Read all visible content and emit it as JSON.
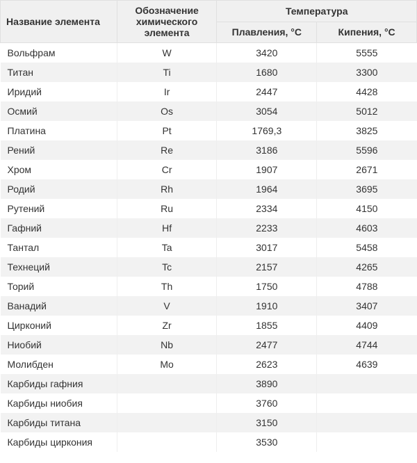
{
  "table": {
    "type": "table",
    "background_color": "#ffffff",
    "row_alt_color": "#f2f2f2",
    "header_bg": "#f0f0f0",
    "border_color": "#e0e0e0",
    "font_family": "Arial",
    "font_size_pt": 11,
    "header_font_weight": "bold",
    "columns": {
      "name": {
        "label": "Название элемента",
        "align": "left",
        "width_pct": 28
      },
      "symbol": {
        "label": "Обозначение химического элемента",
        "align": "center",
        "width_pct": 24
      },
      "temp_group": {
        "label": "Температура"
      },
      "melt": {
        "label": "Плавления, °С",
        "align": "center",
        "width_pct": 24
      },
      "boil": {
        "label": "Кипения, °С",
        "align": "center",
        "width_pct": 24
      }
    },
    "rows": [
      {
        "name": "Вольфрам",
        "symbol": "W",
        "melt": "3420",
        "boil": "5555"
      },
      {
        "name": "Титан",
        "symbol": "Ti",
        "melt": "1680",
        "boil": "3300"
      },
      {
        "name": "Иридий",
        "symbol": "Ir",
        "melt": "2447",
        "boil": "4428"
      },
      {
        "name": "Осмий",
        "symbol": "Os",
        "melt": "3054",
        "boil": "5012"
      },
      {
        "name": "Платина",
        "symbol": "Pt",
        "melt": "1769,3",
        "boil": "3825"
      },
      {
        "name": "Рений",
        "symbol": "Re",
        "melt": "3186",
        "boil": "5596"
      },
      {
        "name": "Хром",
        "symbol": "Cr",
        "melt": "1907",
        "boil": "2671"
      },
      {
        "name": "Родий",
        "symbol": "Rh",
        "melt": "1964",
        "boil": "3695"
      },
      {
        "name": "Рутений",
        "symbol": "Ru",
        "melt": "2334",
        "boil": "4150"
      },
      {
        "name": "Гафний",
        "symbol": "Hf",
        "melt": "2233",
        "boil": "4603"
      },
      {
        "name": "Тантал",
        "symbol": "Ta",
        "melt": "3017",
        "boil": "5458"
      },
      {
        "name": "Технеций",
        "symbol": "Tc",
        "melt": "2157",
        "boil": "4265"
      },
      {
        "name": "Торий",
        "symbol": "Th",
        "melt": "1750",
        "boil": "4788"
      },
      {
        "name": "Ванадий",
        "symbol": "V",
        "melt": "1910",
        "boil": "3407"
      },
      {
        "name": "Цирконий",
        "symbol": "Zr",
        "melt": "1855",
        "boil": "4409"
      },
      {
        "name": "Ниобий",
        "symbol": "Nb",
        "melt": "2477",
        "boil": "4744"
      },
      {
        "name": "Молибден",
        "symbol": "Mo",
        "melt": "2623",
        "boil": "4639"
      },
      {
        "name": "Карбиды гафния",
        "symbol": "",
        "melt": "3890",
        "boil": ""
      },
      {
        "name": "Карбиды ниобия",
        "symbol": "",
        "melt": "3760",
        "boil": ""
      },
      {
        "name": "Карбиды титана",
        "symbol": "",
        "melt": "3150",
        "boil": ""
      },
      {
        "name": "Карбиды циркония",
        "symbol": "",
        "melt": "3530",
        "boil": ""
      }
    ]
  }
}
